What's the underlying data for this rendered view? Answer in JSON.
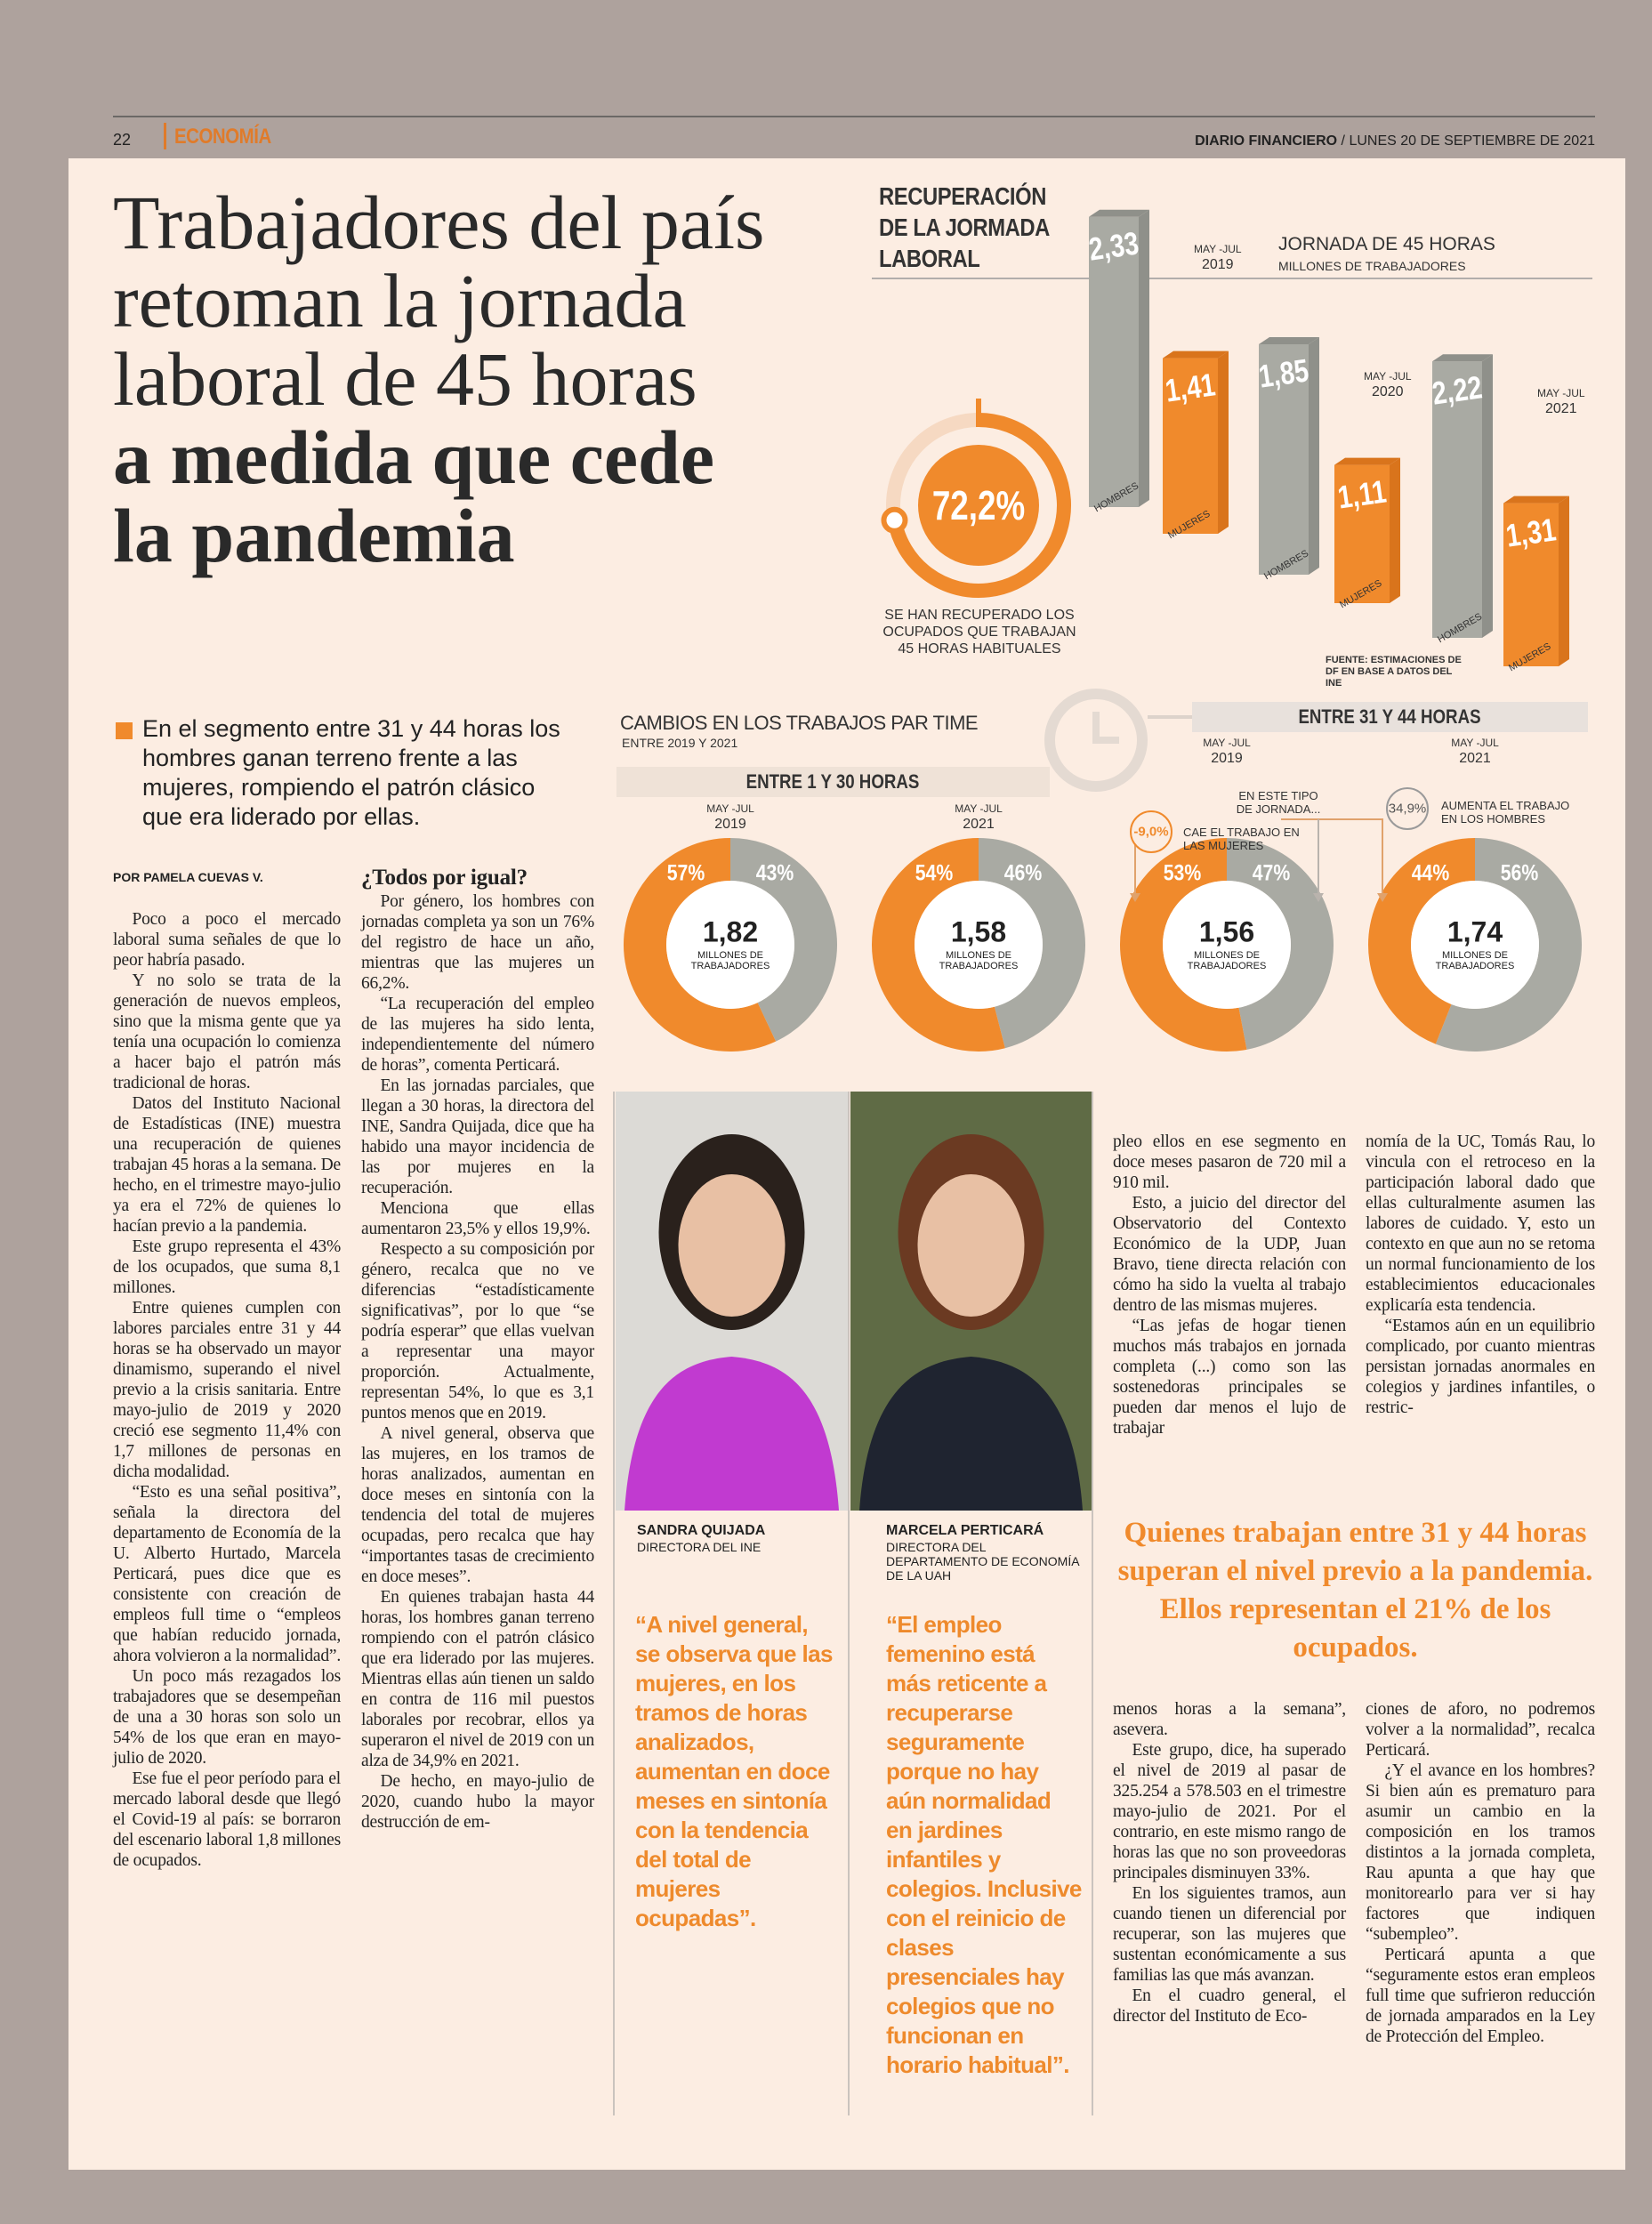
{
  "header": {
    "page_number": "22",
    "section": "ECONOMÍA",
    "publication": "DIARIO FINANCIERO",
    "date": "/ LUNES 20 DE SEPTIEMBRE DE 2021"
  },
  "headline": {
    "light_lines": [
      "Trabajadores del país",
      "retoman la jornada",
      "laboral de 45 horas"
    ],
    "bold_lines": [
      "a medida que cede",
      "la pandemia"
    ]
  },
  "lead": "En el segmento entre 31 y 44 horas los hombres ganan terreno frente a las mujeres, rompiendo el patrón clásico que era liderado por ellas.",
  "byline": "POR PAMELA CUEVAS V.",
  "article": {
    "subhead": "¿Todos por igual?",
    "columns": [
      [
        "Poco a poco el mercado laboral suma señales de que lo peor habría pasado.",
        "Y no solo se trata de la generación de nuevos empleos, sino que la misma gente que ya tenía una ocupación lo comienza a hacer bajo el patrón más tradicional de horas.",
        "Datos del Instituto Nacional de Estadísticas (INE) muestra una recuperación de quienes trabajan 45 horas a la semana. De hecho, en el trimestre mayo-julio ya era el 72% de quienes lo hacían previo a la pandemia.",
        "Este grupo representa el 43% de los ocupados, que suma 8,1 millones.",
        "Entre quienes cumplen con labores parciales entre 31 y 44 horas se ha observado un mayor dinamismo, superando el nivel previo a la crisis sanitaria. Entre mayo-julio de 2019 y 2020 creció ese segmento 11,4% con 1,7 millones de personas en dicha modalidad.",
        "“Esto es una señal positiva”, señala la directora del departamento de Economía de la U. Alberto Hurtado, Marcela Perticará, pues dice que es consistente con creación de empleos full time o “empleos que habían reducido jornada, ahora volvieron a la normalidad”.",
        "Un poco más rezagados los trabajadores que se desempeñan de una a 30 horas son solo un 54% de los que eran en mayo-julio de 2020.",
        "Ese fue el peor período para el mercado laboral desde que llegó el Covid-19 al país: se borraron del escenario laboral 1,8 millones de ocupados."
      ],
      [
        "Por género, los hombres con jornadas completa ya son un 76% del registro de hace un año, mientras que las mujeres un 66,2%.",
        "“La recuperación del empleo de las mujeres ha sido lenta, independientemente del número de horas”, comenta Perticará.",
        "En las jornadas parciales, que llegan a 30 horas, la directora del INE, Sandra Quijada, dice que ha habido una mayor incidencia de las por mujeres en la recuperación.",
        "Menciona que ellas aumentaron 23,5% y ellos 19,9%.",
        "Respecto a su composición por género, recalca que no ve diferencias “estadísticamente significativas”, por lo que “se podría esperar” que ellas vuelvan a representar una mayor proporción. Actualmente, representan 54%, lo que es 3,1 puntos menos que en 2019.",
        "A nivel general, observa que las mujeres, en los tramos de horas analizados, aumentan en doce meses en sintonía con la tendencia del total de mujeres ocupadas, pero recalca que hay “importantes tasas de crecimiento en doce meses”.",
        "En quienes trabajan hasta 44 horas, los hombres ganan terreno rompiendo con el patrón clásico que era liderado por las mujeres. Mientras ellas aún tienen un saldo en contra de 116 mil puestos laborales por recobrar, ellos ya superaron el nivel de 2019 con un alza de 34,9% en 2021.",
        "De hecho, en mayo-julio de 2020, cuando hubo la mayor destrucción de em-"
      ],
      [
        "pleo ellos en ese segmento en doce meses pasaron de 720 mil a 910 mil.",
        "Esto, a juicio del director del Observatorio del Contexto Económico de la UDP, Juan Bravo, tiene directa relación con cómo ha sido la vuelta al trabajo dentro de las mismas mujeres.",
        "“Las jefas de hogar tienen muchos más trabajos en jornada completa (...) como son las sostenedoras principales se pueden dar menos el lujo de trabajar"
      ],
      [
        "nomía de la UC, Tomás Rau, lo vincula con el retroceso en la participación laboral dado que ellas culturalmente asumen las labores de cuidado. Y, esto un contexto en que aun no se retoma un normal funcionamiento de los establecimientos educacionales explicaría esta tendencia.",
        "“Estamos aún en un equilibrio complicado, por cuanto mientras persistan jornadas anormales en colegios y jardines infantiles, o restric-"
      ],
      [
        "menos horas a la semana”, asevera.",
        "Este grupo, dice, ha superado el nivel de 2019 al pasar de 325.254 a 578.503 en el trimestre mayo-julio de 2021. Por el contrario, en este mismo rango de horas las que no son proveedoras principales disminuyen 33%.",
        "En los siguientes tramos, aun cuando tienen un diferencial por recuperar, son las mujeres que sustentan económicamente a sus familias las que más avanzan.",
        "En el cuadro general, el director del Instituto de Eco-"
      ],
      [
        "ciones de aforo, no podremos volver a la normalidad”, recalca Perticará.",
        "¿Y el avance en los hombres? Si bien aún es prematuro para asumir un cambio en la composición en los tramos distintos a la jornada completa, Rau apunta a que hay que monitorearlo para ver si hay factores que indiquen “subempleo”.",
        "Perticará apunta a que “seguramente estos eran empleos full time que sufrieron reducción de jornada amparados en la Ley de Protección del Empleo."
      ]
    ]
  },
  "infographic_45h": {
    "title_lines": [
      "RECUPERACIÓN",
      "DE LA JORMADA",
      "LABORAL"
    ],
    "recovered": {
      "value": 72.2,
      "label": "72,2%"
    },
    "recovered_caption": "SE HAN RECUPERADO LOS OCUPADOS QUE TRABAJAN 45 HORAS HABITUALES",
    "chart_title": "JORNADA DE 45 HORAS",
    "chart_subtitle": "MILLONES DE TRABAJADORES",
    "groups": [
      {
        "period": "MAY -JUL",
        "year": "2019",
        "men": {
          "name": "HOMBRES",
          "value": 2.33,
          "label": "2,33"
        },
        "women": {
          "name": "MUJERES",
          "value": 1.41,
          "label": "1,41"
        }
      },
      {
        "period": "MAY -JUL",
        "year": "2020",
        "men": {
          "name": "HOMBRES",
          "value": 1.85,
          "label": "1,85"
        },
        "women": {
          "name": "MUJERES",
          "value": 1.11,
          "label": "1,11"
        }
      },
      {
        "period": "MAY -JUL",
        "year": "2021",
        "men": {
          "name": "HOMBRES",
          "value": 2.22,
          "label": "2,22"
        },
        "women": {
          "name": "MUJERES",
          "value": 1.31,
          "label": "1,31"
        }
      }
    ],
    "source": "FUENTE: ESTIMACIONES DE DF EN BASE A DATOS DEL INE"
  },
  "infographic_part_time": {
    "title": "CAMBIOS EN LOS TRABAJOS PAR TIME",
    "subtitle": "ENTRE 2019 Y 2021",
    "sections": [
      {
        "title": "ENTRE 1 Y 30 HORAS",
        "donuts": [
          {
            "period": "MAY -JUL",
            "year": "2019",
            "women": {
              "value": 57,
              "label": "57%"
            },
            "men": {
              "value": 43,
              "label": "43%"
            },
            "total": "1,82",
            "unit": "MILLONES DE TRABAJADORES"
          },
          {
            "period": "MAY -JUL",
            "year": "2021",
            "women": {
              "value": 54,
              "label": "54%"
            },
            "men": {
              "value": 46,
              "label": "46%"
            },
            "total": "1,58",
            "unit": "MILLONES DE TRABAJADORES"
          }
        ]
      },
      {
        "title": "ENTRE 31 Y 44 HORAS",
        "donuts": [
          {
            "period": "MAY -JUL",
            "year": "2019",
            "women": {
              "value": 53,
              "label": "53%"
            },
            "men": {
              "value": 47,
              "label": "47%"
            },
            "total": "1,56",
            "unit": "MILLONES DE TRABAJADORES"
          },
          {
            "period": "MAY -JUL",
            "year": "2021",
            "women": {
              "value": 44,
              "label": "44%"
            },
            "men": {
              "value": 56,
              "label": "56%"
            },
            "total": "1,74",
            "unit": "MILLONES DE TRABAJADORES"
          }
        ]
      }
    ],
    "type_note": "EN ESTE TIPO DE JORNADA...",
    "women_change": {
      "label": "-9,0%",
      "text": "CAE EL TRABAJO EN LAS MUJERES"
    },
    "men_change": {
      "label": "34,9%",
      "text": "AUMENTA EL TRABAJO EN LOS HOMBRES"
    }
  },
  "photos": [
    {
      "name": "SANDRA QUIJADA",
      "role": "DIRECTORA DEL INE"
    },
    {
      "name": "MARCELA PERTICARÁ",
      "role": "DIRECTORA DEL DEPARTAMENTO DE ECONOMÍA DE LA UAH"
    }
  ],
  "quotes": [
    "“A nivel general, se observa que las mujeres, en los tramos de horas analizados, aumentan en doce meses en sintonía con la tendencia del total de mujeres ocupadas”.",
    "“El empleo femenino está más reticente a recuperarse seguramente porque no hay aún normalidad en jardines infantiles y colegios. Inclusive con el reinicio de clases presenciales hay colegios que no funcionan en horario habitual”."
  ],
  "pull_quote": "Quienes trabajan entre 31 y 44 horas superan el nivel previo a la pandemia. Ellos representan el 21% de los ocupados."
}
